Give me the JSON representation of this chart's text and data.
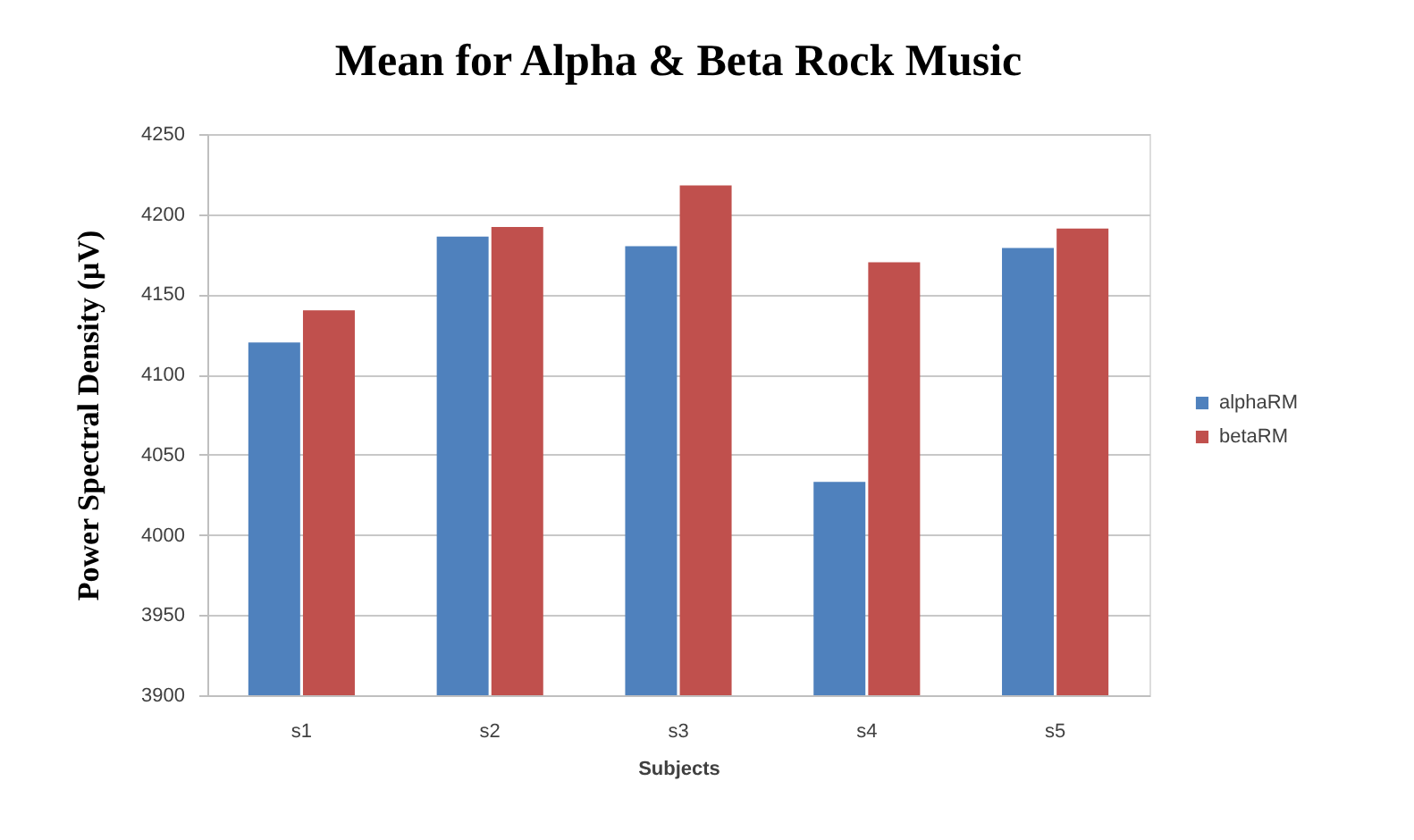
{
  "chart_data": {
    "type": "bar",
    "title": "Mean for Alpha & Beta Rock Music",
    "xlabel": "Subjects",
    "ylabel": "Power Spectral Density (µV)",
    "categories": [
      "s1",
      "s2",
      "s3",
      "s4",
      "s5"
    ],
    "series": [
      {
        "name": "alphaRM",
        "color": "#4f81bd",
        "values": [
          4120,
          4186,
          4180,
          4033,
          4179
        ]
      },
      {
        "name": "betaRM",
        "color": "#c0504d",
        "values": [
          4140,
          4192,
          4218,
          4170,
          4191
        ]
      }
    ],
    "ylim": [
      3900,
      4250
    ],
    "yticks": [
      3900,
      3950,
      4000,
      4050,
      4100,
      4150,
      4200,
      4250
    ],
    "grid": "y",
    "legend": "right"
  }
}
